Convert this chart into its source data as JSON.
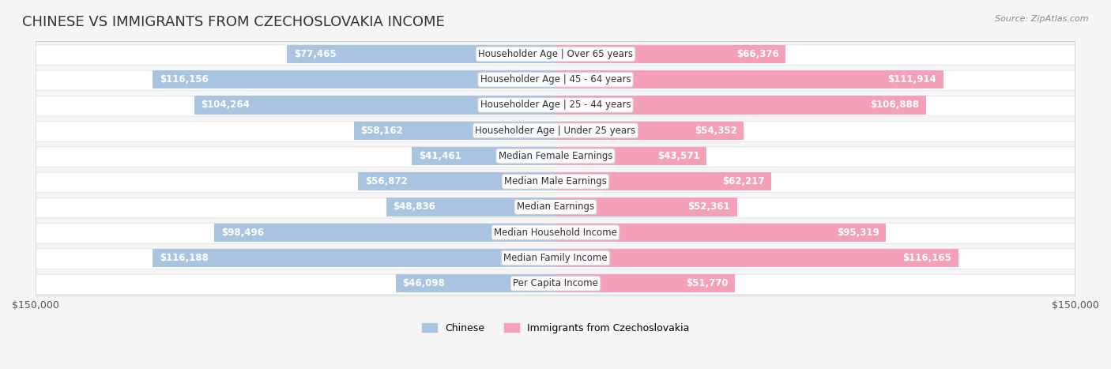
{
  "title": "CHINESE VS IMMIGRANTS FROM CZECHOSLOVAKIA INCOME",
  "source": "Source: ZipAtlas.com",
  "categories": [
    "Per Capita Income",
    "Median Family Income",
    "Median Household Income",
    "Median Earnings",
    "Median Male Earnings",
    "Median Female Earnings",
    "Householder Age | Under 25 years",
    "Householder Age | 25 - 44 years",
    "Householder Age | 45 - 64 years",
    "Householder Age | Over 65 years"
  ],
  "chinese_values": [
    46098,
    116188,
    98496,
    48836,
    56872,
    41461,
    58162,
    104264,
    116156,
    77465
  ],
  "czech_values": [
    51770,
    116165,
    95319,
    52361,
    62217,
    43571,
    54352,
    106888,
    111914,
    66376
  ],
  "chinese_labels": [
    "$46,098",
    "$116,188",
    "$98,496",
    "$48,836",
    "$56,872",
    "$41,461",
    "$58,162",
    "$104,264",
    "$116,156",
    "$77,465"
  ],
  "czech_labels": [
    "$51,770",
    "$116,165",
    "$95,319",
    "$52,361",
    "$62,217",
    "$43,571",
    "$54,352",
    "$106,888",
    "$111,914",
    "$66,376"
  ],
  "chinese_color": "#a8c4e0",
  "chinese_color_dark": "#6b9dc8",
  "czech_color": "#f4a0b8",
  "czech_color_dark": "#e8648a",
  "max_value": 150000,
  "background_color": "#f5f5f5",
  "row_bg_color": "#ffffff",
  "legend_chinese": "Chinese",
  "legend_czech": "Immigrants from Czechoslovakia",
  "title_fontsize": 13,
  "label_fontsize": 8.5,
  "category_fontsize": 8.5
}
